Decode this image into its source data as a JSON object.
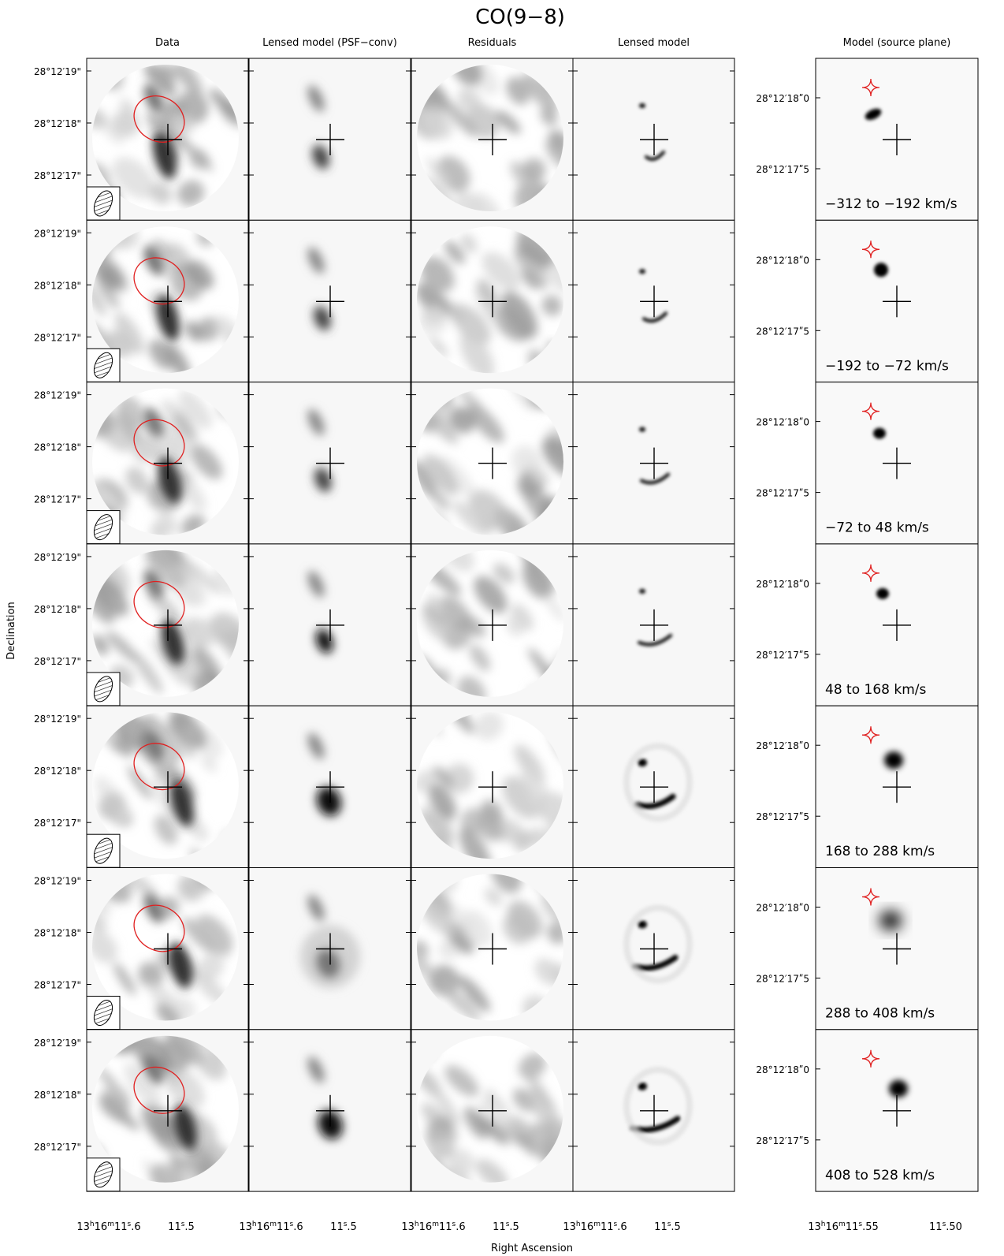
{
  "figure": {
    "title": "CO(9−8)",
    "x_label": "Right Ascension",
    "y_label": "Declination"
  },
  "columns": [
    "Data",
    "Lensed model (PSF−conv)",
    "Residuals",
    "Lensed model",
    "Model (source plane)"
  ],
  "dec_ticks_image": [
    "28°12′19\"",
    "28°12′18\"",
    "28°12′17\""
  ],
  "dec_ticks_source": [
    "28°12′18ʺ0",
    "28°12′17ʺ5"
  ],
  "ra_ticks_image": [
    {
      "hours": "13",
      "minutes": "16",
      "seconds": "11",
      "frac": ".6"
    },
    {
      "seconds": "11",
      "frac": ".5"
    }
  ],
  "ra_ticks_source": [
    {
      "hours": "13",
      "minutes": "16",
      "seconds": "11",
      "frac": ".55"
    },
    {
      "seconds": "11",
      "frac": ".50"
    }
  ],
  "velocity_bins": [
    "−312 to −192 km/s",
    "−192 to −72 km/s",
    "−72 to 48 km/s",
    "48 to 168 km/s",
    "168 to 288 km/s",
    "288 to 408 km/s",
    "408 to 528 km/s"
  ],
  "colors": {
    "critical_curve": "#e02020",
    "frame": "#000000",
    "panel_background": "#f7f7f7"
  }
}
